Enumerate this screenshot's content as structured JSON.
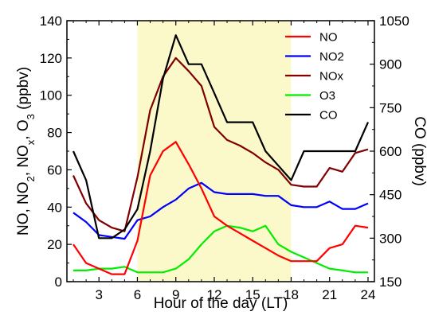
{
  "chart_data": {
    "type": "line",
    "xlabel": "Hour of the day (LT)",
    "ylabel_left": "NO, NO2, NOx, O3 (ppbv)",
    "ylabel_right": "CO (ppbv)",
    "xlim": [
      0.5,
      24.5
    ],
    "ylim_left": [
      0,
      140
    ],
    "ylim_right": [
      150,
      1050
    ],
    "x_ticks": [
      3,
      6,
      9,
      12,
      15,
      18,
      21,
      24
    ],
    "y_ticks_left": [
      0,
      20,
      40,
      60,
      80,
      100,
      120,
      140
    ],
    "y_ticks_right": [
      150,
      300,
      450,
      600,
      750,
      900,
      1050
    ],
    "shaded_region": {
      "x_start": 6,
      "x_end": 18,
      "color": "#fbf8c9"
    },
    "grid": false,
    "legend_position": "top-right",
    "x": [
      1,
      2,
      3,
      4,
      5,
      6,
      7,
      8,
      9,
      10,
      11,
      12,
      13,
      14,
      15,
      16,
      17,
      18,
      19,
      20,
      21,
      22,
      23,
      24
    ],
    "series": [
      {
        "name": "NO",
        "color": "#ff0000",
        "axis": "left",
        "values": [
          20,
          10,
          7,
          4,
          4,
          22,
          57,
          70,
          75,
          63,
          50,
          35,
          30,
          26,
          22,
          18,
          14,
          11,
          11,
          11,
          18,
          20,
          30,
          29
        ]
      },
      {
        "name": "NO2",
        "color": "#0000ff",
        "axis": "left",
        "values": [
          37,
          32,
          25,
          24,
          23,
          33,
          35,
          40,
          44,
          50,
          53,
          48,
          47,
          47,
          47,
          46,
          46,
          41,
          40,
          40,
          43,
          39,
          39,
          42
        ]
      },
      {
        "name": "NOx",
        "color": "#800000",
        "axis": "left",
        "values": [
          57,
          42,
          33,
          29,
          27,
          56,
          92,
          110,
          120,
          113,
          105,
          83,
          76,
          73,
          69,
          64,
          60,
          52,
          51,
          51,
          61,
          59,
          69,
          71
        ]
      },
      {
        "name": "O3",
        "color": "#00ee00",
        "axis": "left",
        "values": [
          6,
          6,
          7,
          7,
          8,
          5,
          5,
          5,
          7,
          12,
          20,
          27,
          30,
          29,
          27,
          30,
          20,
          16,
          13,
          10,
          7,
          6,
          5,
          5
        ]
      },
      {
        "name": "CO",
        "color": "#000000",
        "axis": "right",
        "values": [
          600,
          500,
          300,
          300,
          330,
          400,
          600,
          850,
          1000,
          900,
          900,
          800,
          700,
          700,
          700,
          600,
          550,
          500,
          600,
          600,
          600,
          600,
          600,
          700
        ]
      }
    ]
  }
}
